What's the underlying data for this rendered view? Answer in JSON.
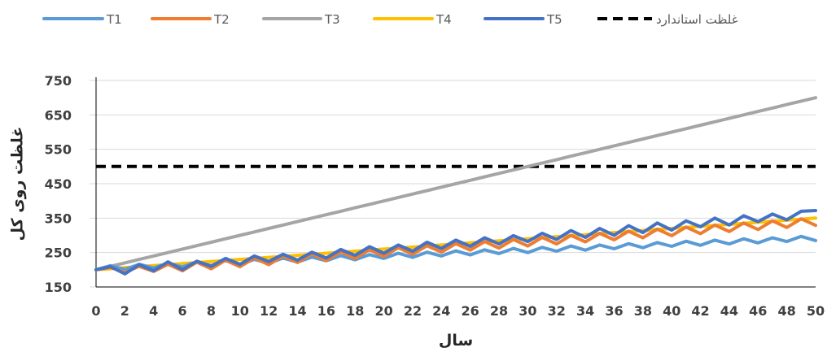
{
  "chart_data": {
    "type": "line",
    "title": "",
    "xlabel": "سال",
    "ylabel": "غلظت روی کل",
    "xlim": [
      0,
      50
    ],
    "ylim": [
      150,
      750
    ],
    "x_ticks": [
      0,
      2,
      4,
      6,
      8,
      10,
      12,
      14,
      16,
      18,
      20,
      22,
      24,
      26,
      28,
      30,
      32,
      34,
      36,
      38,
      40,
      42,
      44,
      46,
      48,
      50
    ],
    "y_ticks": [
      150,
      250,
      350,
      450,
      550,
      650,
      750
    ],
    "grid": "horizontal",
    "legend_position": "top",
    "x": [
      0,
      1,
      2,
      3,
      4,
      5,
      6,
      7,
      8,
      9,
      10,
      11,
      12,
      13,
      14,
      15,
      16,
      17,
      18,
      19,
      20,
      21,
      22,
      23,
      24,
      25,
      26,
      27,
      28,
      29,
      30,
      31,
      32,
      33,
      34,
      35,
      36,
      37,
      38,
      39,
      40,
      41,
      42,
      43,
      44,
      45,
      46,
      47,
      48,
      49,
      50
    ],
    "series": [
      {
        "name": "T1",
        "color": "#5B9BD5",
        "dash": "solid",
        "values": [
          200,
          212,
          201,
          216,
          205,
          219,
          208,
          223,
          212,
          227,
          215,
          230,
          219,
          234,
          222,
          237,
          226,
          241,
          229,
          244,
          233,
          248,
          236,
          251,
          240,
          255,
          243,
          258,
          247,
          262,
          250,
          265,
          254,
          269,
          257,
          272,
          261,
          276,
          264,
          279,
          268,
          283,
          271,
          286,
          275,
          290,
          278,
          293,
          282,
          297,
          285
        ]
      },
      {
        "name": "T2",
        "color": "#ED7D31",
        "dash": "solid",
        "values": [
          200,
          207,
          192,
          210,
          195,
          216,
          197,
          222,
          203,
          228,
          209,
          234,
          215,
          240,
          221,
          246,
          227,
          252,
          233,
          258,
          239,
          264,
          245,
          270,
          251,
          276,
          257,
          282,
          263,
          288,
          269,
          294,
          275,
          300,
          281,
          306,
          287,
          312,
          293,
          318,
          299,
          324,
          305,
          330,
          311,
          336,
          317,
          342,
          323,
          348,
          329
        ]
      },
      {
        "name": "T3",
        "color": "#A5A5A5",
        "dash": "solid",
        "values": [
          200,
          210,
          220,
          230,
          240,
          250,
          260,
          270,
          280,
          290,
          300,
          310,
          320,
          330,
          340,
          350,
          360,
          370,
          380,
          390,
          400,
          410,
          420,
          430,
          440,
          450,
          460,
          470,
          480,
          490,
          500,
          510,
          520,
          530,
          540,
          550,
          560,
          570,
          580,
          590,
          600,
          610,
          620,
          630,
          640,
          650,
          660,
          670,
          680,
          690,
          700
        ]
      },
      {
        "name": "T4",
        "color": "#FFC000",
        "dash": "solid",
        "values": [
          200,
          203,
          206,
          209,
          212,
          215,
          218,
          221,
          224,
          227,
          230,
          233,
          236,
          239,
          242,
          245,
          248,
          251,
          254,
          257,
          260,
          263,
          266,
          269,
          272,
          275,
          278,
          281,
          284,
          287,
          290,
          293,
          296,
          299,
          302,
          305,
          308,
          311,
          314,
          317,
          320,
          323,
          326,
          329,
          332,
          335,
          338,
          341,
          344,
          347,
          350
        ]
      },
      {
        "name": "T5",
        "color": "#4472C4",
        "dash": "solid",
        "values": [
          200,
          209,
          188,
          215,
          197,
          223,
          200,
          225,
          210,
          233,
          216,
          240,
          224,
          245,
          228,
          251,
          234,
          259,
          242,
          267,
          248,
          272,
          254,
          280,
          262,
          286,
          268,
          293,
          275,
          299,
          282,
          306,
          288,
          314,
          294,
          320,
          300,
          328,
          308,
          336,
          315,
          342,
          325,
          350,
          330,
          357,
          340,
          362,
          345,
          370,
          372
        ]
      },
      {
        "name": "غلظت استاندارد",
        "color": "#000000",
        "dash": "dashed",
        "values": [
          500,
          500,
          500,
          500,
          500,
          500,
          500,
          500,
          500,
          500,
          500,
          500,
          500,
          500,
          500,
          500,
          500,
          500,
          500,
          500,
          500,
          500,
          500,
          500,
          500,
          500,
          500,
          500,
          500,
          500,
          500,
          500,
          500,
          500,
          500,
          500,
          500,
          500,
          500,
          500,
          500,
          500,
          500,
          500,
          500,
          500,
          500,
          500,
          500,
          500,
          500
        ]
      }
    ]
  }
}
